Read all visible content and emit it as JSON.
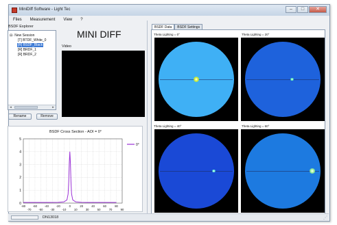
{
  "window": {
    "title": "MiniDiff Software - Light Tec",
    "controls": {
      "minimize": "–",
      "maximize": "□",
      "close": "✕"
    }
  },
  "menu": [
    "Files",
    "Measurement",
    "View",
    "?"
  ],
  "explorer": {
    "label": "BSDF Explorer",
    "items": [
      {
        "text": "⊟· New Session",
        "selected": false
      },
      {
        "text": "[T] BTDF_White_0",
        "selected": false
      },
      {
        "text": "[R] BSDF_Black",
        "selected": true
      },
      {
        "text": "[R] BRDF_1",
        "selected": false
      },
      {
        "text": "[R] BRDF_2",
        "selected": false
      }
    ],
    "rename_button": "Rename",
    "remove_button": "Remove"
  },
  "brand": "MINI DIFF",
  "video_label": "Video",
  "tabs": [
    "BSDF Data",
    "BSDF Settings"
  ],
  "views": [
    {
      "label": "Theta Lighting = 0°",
      "disc_color": "#3fb0f5",
      "spot_color": "#d4f02a",
      "spot_x": 0.5,
      "spot_y": 0.5,
      "spot_size": 0.07
    },
    {
      "label": "Theta Lighting = 20°",
      "disc_color": "#1e62dc",
      "spot_color": "#5ef2b4",
      "spot_x": 0.62,
      "spot_y": 0.5,
      "spot_size": 0.04
    },
    {
      "label": "Theta Lighting = 40°",
      "disc_color": "#1a49d6",
      "spot_color": "#63f0d6",
      "spot_x": 0.73,
      "spot_y": 0.5,
      "spot_size": 0.04
    },
    {
      "label": "Theta Lighting = 60°",
      "disc_color": "#1d7ae0",
      "spot_color": "#9ef592",
      "spot_x": 0.89,
      "spot_y": 0.5,
      "spot_size": 0.06
    }
  ],
  "colors": {
    "accent": "#3a78d4",
    "series": "#9a2fd6",
    "video": "#000000"
  },
  "status": {
    "text": "DN13018"
  },
  "chart_data": {
    "type": "line",
    "title": "BSDF Cross Section - AOI = 0°",
    "xlabel": "",
    "ylabel": "",
    "xlim": [
      -80,
      90
    ],
    "ylim": [
      0,
      5
    ],
    "xticks": [
      -80,
      -70,
      -60,
      -50,
      -40,
      -30,
      -20,
      -10,
      0,
      10,
      20,
      30,
      40,
      50,
      60,
      70,
      80,
      90
    ],
    "yticks": [
      0,
      1,
      2,
      3,
      4,
      5
    ],
    "grid": true,
    "legend": "top-right",
    "series": [
      {
        "name": "0°",
        "color": "#9a2fd6",
        "x": [
          -80,
          -40,
          -20,
          -10,
          -5,
          -3,
          -2,
          -1,
          0,
          1,
          2,
          3,
          5,
          10,
          20,
          40,
          80
        ],
        "y": [
          0.05,
          0.05,
          0.06,
          0.1,
          0.25,
          0.7,
          1.6,
          3.1,
          4.0,
          3.1,
          1.6,
          0.7,
          0.25,
          0.1,
          0.06,
          0.05,
          0.05
        ]
      }
    ]
  }
}
